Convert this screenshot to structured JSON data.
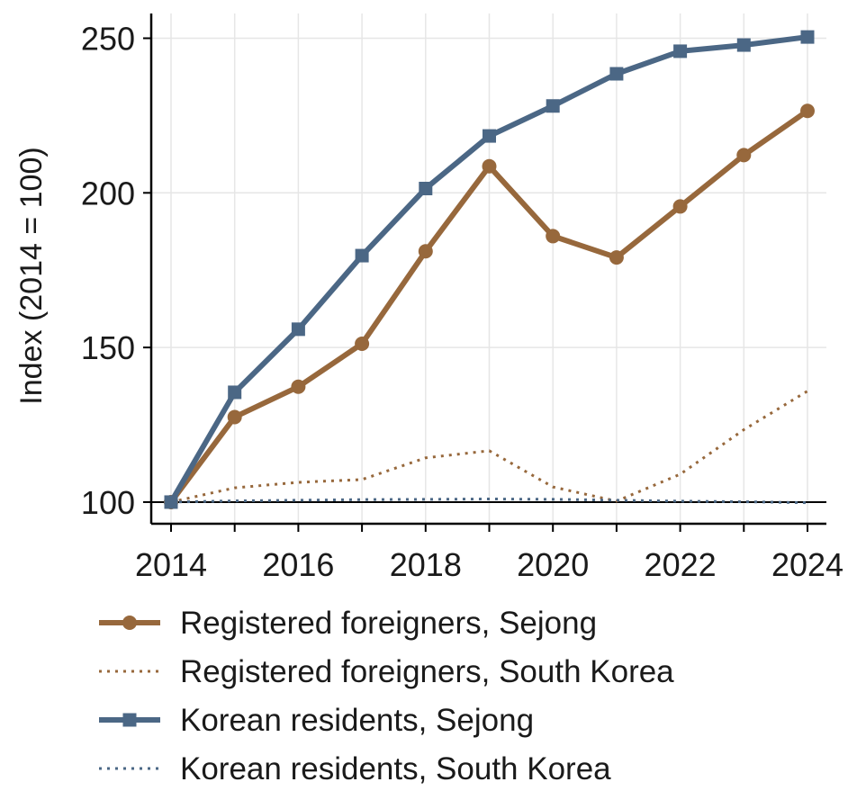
{
  "chart_data": {
    "type": "line",
    "title": "",
    "xlabel": "",
    "ylabel": "Index (2014 = 100)",
    "xlim": [
      2014,
      2024
    ],
    "ylim": [
      93,
      258
    ],
    "x_ticks": [
      2014,
      2016,
      2018,
      2020,
      2022,
      2024
    ],
    "y_ticks": [
      100,
      150,
      200,
      250
    ],
    "reference_line": 100,
    "grid": true,
    "legend_position": "below",
    "x": [
      2014,
      2015,
      2016,
      2017,
      2018,
      2019,
      2020,
      2021,
      2022,
      2023,
      2024
    ],
    "series": [
      {
        "name": "Registered foreigners, Sejong",
        "color": "#97683c",
        "style": "solid",
        "marker": "circle",
        "values": [
          100,
          127.5,
          137.3,
          151.2,
          181.1,
          208.6,
          186,
          179.1,
          195.6,
          212.2,
          226.5
        ]
      },
      {
        "name": "Registered foreigners, South Korea",
        "color": "#97683c",
        "style": "dotted",
        "marker": "none",
        "values": [
          100,
          104.6,
          106.4,
          107.3,
          114.3,
          116.6,
          104.9,
          100.3,
          109,
          123.4,
          135.9
        ]
      },
      {
        "name": "Korean residents, Sejong",
        "color": "#4b6785",
        "style": "solid",
        "marker": "square",
        "values": [
          100,
          135.5,
          155.9,
          179.7,
          201.4,
          218.4,
          228.1,
          238.5,
          245.8,
          247.8,
          250.4
        ]
      },
      {
        "name": "Korean residents, South Korea",
        "color": "#4b6785",
        "style": "dotted",
        "marker": "none",
        "values": [
          100,
          100.4,
          100.6,
          100.8,
          100.9,
          101,
          100.9,
          100.6,
          100.3,
          100.1,
          99.8
        ]
      }
    ]
  }
}
